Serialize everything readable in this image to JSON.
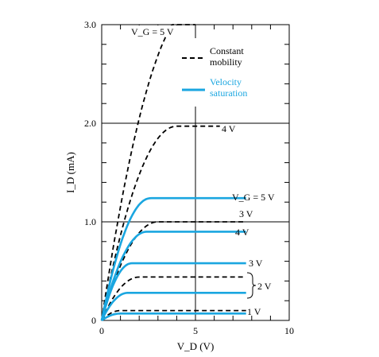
{
  "chart_data": {
    "type": "line",
    "xlabel": "V_D (V)",
    "ylabel": "I_D (mA)",
    "xlim": [
      0,
      10
    ],
    "ylim": [
      0,
      3.0
    ],
    "x_ticks": [
      "0",
      "5",
      "10"
    ],
    "y_ticks": [
      "0",
      "1.0",
      "2.0",
      "3.0"
    ],
    "grid": "major lines at x=5, y=1.0, y=2.0",
    "colors": {
      "constant": "#000000",
      "velocity": "#1aa6e0"
    },
    "legend": {
      "placement": "top-right",
      "entries": [
        {
          "label_line1": "Constant",
          "label_line2": "mobility",
          "style": "dashed",
          "color": "#000000"
        },
        {
          "label_line1": "Velocity",
          "label_line2": "saturation",
          "style": "solid",
          "color": "#1aa6e0"
        }
      ]
    },
    "series": [
      {
        "group": "constant_mobility",
        "label": "V_G = 5 V",
        "vsat": 5,
        "isat": 3.2,
        "xmax": 5.0
      },
      {
        "group": "constant_mobility",
        "label": "4 V",
        "vsat": 4,
        "isat": 1.97,
        "xmax": 6.3
      },
      {
        "group": "constant_mobility",
        "label": "3 V",
        "vsat": 3,
        "isat": 1.0,
        "xmax": 7.7
      },
      {
        "group": "constant_mobility",
        "label": "2 V",
        "vsat": 2,
        "isat": 0.44,
        "xmax": 7.7
      },
      {
        "group": "constant_mobility",
        "label": "1 V",
        "vsat": 1,
        "isat": 0.1,
        "xmax": 7.7
      },
      {
        "group": "velocity_saturation",
        "label": "V_G = 5 V",
        "vsat": 2.6,
        "isat": 1.24,
        "xmax": 7.7
      },
      {
        "group": "velocity_saturation",
        "label": "4 V",
        "vsat": 2.4,
        "isat": 0.9,
        "xmax": 7.7
      },
      {
        "group": "velocity_saturation",
        "label": "3 V",
        "vsat": 1.6,
        "isat": 0.58,
        "xmax": 7.7
      },
      {
        "group": "velocity_saturation",
        "label": "2 V",
        "vsat": 1.4,
        "isat": 0.28,
        "xmax": 7.7
      },
      {
        "group": "velocity_saturation",
        "label": "1 V",
        "vsat": 1.0,
        "isat": 0.07,
        "xmax": 7.7
      }
    ],
    "annotations": {
      "vg5_const": "V_G = 5 V",
      "v4_const": "4 V",
      "vg5_vel": "V_G = 5 V",
      "v3_const": "3 V",
      "v4_vel": "4 V",
      "v3_vel": "3 V",
      "v2_pair": "2 V",
      "v1_pair": "1 V"
    }
  }
}
